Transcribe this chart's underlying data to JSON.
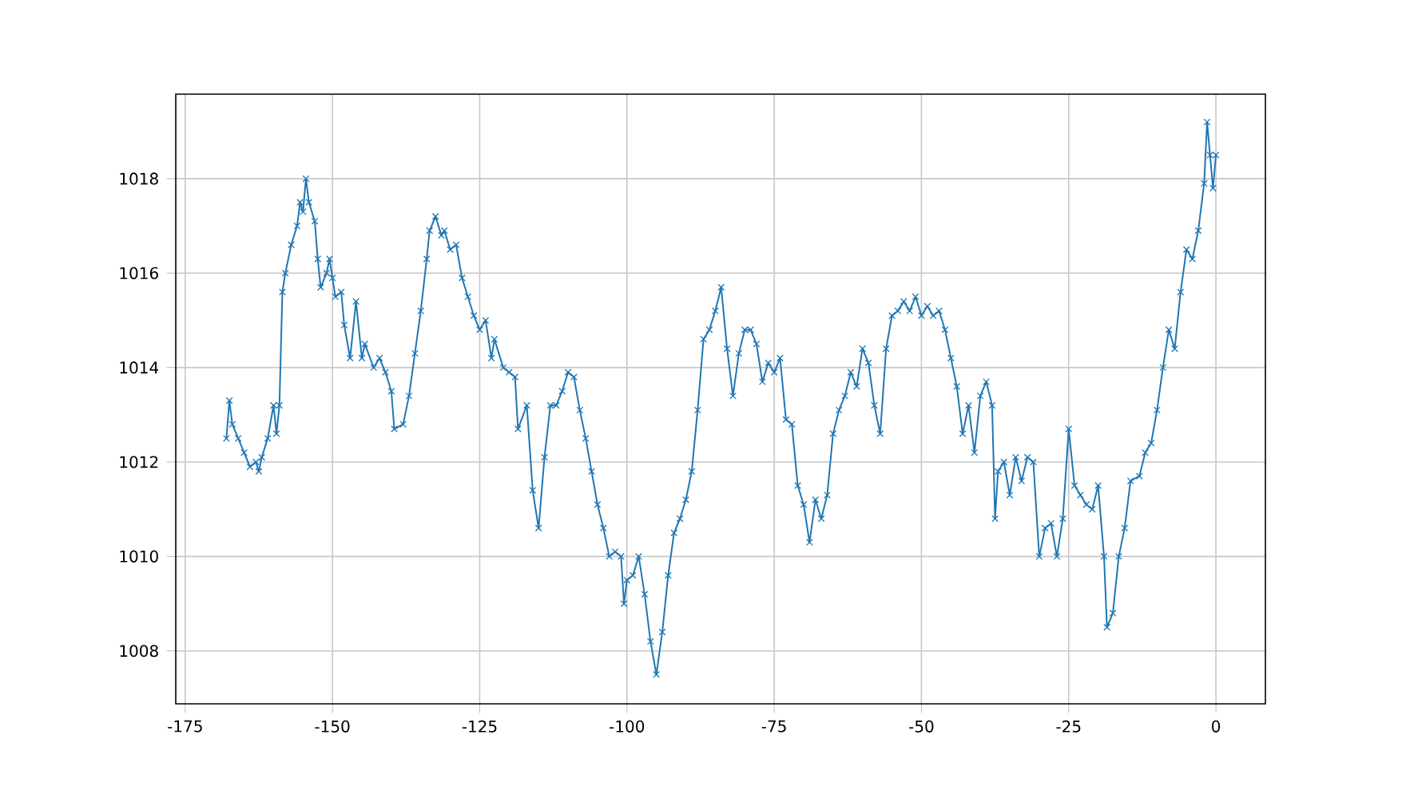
{
  "chart_data": {
    "type": "line",
    "color": "#1f77b4",
    "marker": "cross",
    "grid": true,
    "xlim": [
      -176.6,
      8.4
    ],
    "ylim": [
      1006.88,
      1019.79
    ],
    "xticks": [
      -175,
      -150,
      -125,
      -100,
      -75,
      -50,
      -25,
      0
    ],
    "yticks": [
      1008,
      1010,
      1012,
      1014,
      1016,
      1018
    ],
    "x": [
      -168,
      -167.5,
      -167,
      -166,
      -165,
      -164,
      -163,
      -162.5,
      -162,
      -161,
      -160,
      -159.5,
      -159,
      -158.5,
      -158,
      -157,
      -156,
      -155.5,
      -155,
      -154.5,
      -154,
      -153,
      -152.5,
      -152,
      -151,
      -150.5,
      -150,
      -149.5,
      -148.5,
      -148,
      -147,
      -146,
      -145,
      -144.5,
      -143,
      -142,
      -141,
      -140,
      -139.5,
      -138,
      -137,
      -136,
      -135,
      -134,
      -133.5,
      -132.5,
      -131.5,
      -131,
      -130,
      -129,
      -128,
      -127,
      -126,
      -125,
      -124,
      -123,
      -122.5,
      -121,
      -120,
      -119,
      -118.5,
      -117,
      -116,
      -115,
      -114,
      -113,
      -112,
      -111,
      -110,
      -109,
      -108,
      -107,
      -106,
      -105,
      -104,
      -103,
      -102,
      -101,
      -100.5,
      -100,
      -99,
      -98,
      -97,
      -96,
      -95,
      -94,
      -93,
      -92,
      -91,
      -90,
      -89,
      -88,
      -87,
      -86,
      -85,
      -84,
      -83,
      -82,
      -81,
      -80,
      -79,
      -78,
      -77,
      -76,
      -75,
      -74,
      -73,
      -72,
      -71,
      -70,
      -69,
      -68,
      -67,
      -66,
      -65,
      -64,
      -63,
      -62,
      -61,
      -60,
      -59,
      -58,
      -57,
      -56,
      -55,
      -54,
      -53,
      -52,
      -51,
      -50,
      -49,
      -48,
      -47,
      -46,
      -45,
      -44,
      -43,
      -42,
      -41,
      -40,
      -39,
      -38,
      -37.5,
      -37,
      -36,
      -35,
      -34,
      -33,
      -32,
      -31,
      -30,
      -29,
      -28,
      -27,
      -26,
      -25,
      -24,
      -23,
      -22,
      -21,
      -20,
      -19,
      -18.5,
      -17.5,
      -16.5,
      -15.5,
      -14.5,
      -13,
      -12,
      -11,
      -10,
      -9,
      -8,
      -7,
      -6,
      -5,
      -4,
      -3,
      -2,
      -1.5,
      -1,
      -0.5,
      0
    ],
    "values": [
      1012.5,
      1013.3,
      1012.8,
      1012.5,
      1012.2,
      1011.9,
      1012.0,
      1011.8,
      1012.1,
      1012.5,
      1013.2,
      1012.6,
      1013.2,
      1015.6,
      1016.0,
      1016.6,
      1017.0,
      1017.5,
      1017.3,
      1018.0,
      1017.5,
      1017.1,
      1016.3,
      1015.7,
      1016.0,
      1016.3,
      1015.9,
      1015.5,
      1015.6,
      1014.9,
      1014.2,
      1015.4,
      1014.2,
      1014.5,
      1014.0,
      1014.2,
      1013.9,
      1013.5,
      1012.7,
      1012.8,
      1013.4,
      1014.3,
      1015.2,
      1016.3,
      1016.9,
      1017.2,
      1016.8,
      1016.9,
      1016.5,
      1016.6,
      1015.9,
      1015.5,
      1015.1,
      1014.8,
      1015.0,
      1014.2,
      1014.6,
      1014.0,
      1013.9,
      1013.8,
      1012.7,
      1013.2,
      1011.4,
      1010.6,
      1012.1,
      1013.2,
      1013.2,
      1013.5,
      1013.9,
      1013.8,
      1013.1,
      1012.5,
      1011.8,
      1011.1,
      1010.6,
      1010.0,
      1010.1,
      1010.0,
      1009.0,
      1009.5,
      1009.6,
      1010.0,
      1009.2,
      1008.2,
      1007.5,
      1008.4,
      1009.6,
      1010.5,
      1010.8,
      1011.2,
      1011.8,
      1013.1,
      1014.6,
      1014.8,
      1015.2,
      1015.7,
      1014.4,
      1013.4,
      1014.3,
      1014.8,
      1014.8,
      1014.5,
      1013.7,
      1014.1,
      1013.9,
      1014.2,
      1012.9,
      1012.8,
      1011.5,
      1011.1,
      1010.3,
      1011.2,
      1010.8,
      1011.3,
      1012.6,
      1013.1,
      1013.4,
      1013.9,
      1013.6,
      1014.4,
      1014.1,
      1013.2,
      1012.6,
      1014.4,
      1015.1,
      1015.2,
      1015.4,
      1015.2,
      1015.5,
      1015.1,
      1015.3,
      1015.1,
      1015.2,
      1014.8,
      1014.2,
      1013.6,
      1012.6,
      1013.2,
      1012.2,
      1013.4,
      1013.7,
      1013.2,
      1010.8,
      1011.8,
      1012.0,
      1011.3,
      1012.1,
      1011.6,
      1012.1,
      1012.0,
      1010.0,
      1010.6,
      1010.7,
      1010.0,
      1010.8,
      1012.7,
      1011.5,
      1011.3,
      1011.1,
      1011.0,
      1011.5,
      1010.0,
      1008.5,
      1008.8,
      1010.0,
      1010.6,
      1011.6,
      1011.7,
      1012.2,
      1012.4,
      1013.1,
      1014.0,
      1014.8,
      1014.4,
      1015.6,
      1016.5,
      1016.3,
      1016.9,
      1017.9,
      1019.2,
      1018.5,
      1017.8,
      1018.5
    ]
  }
}
